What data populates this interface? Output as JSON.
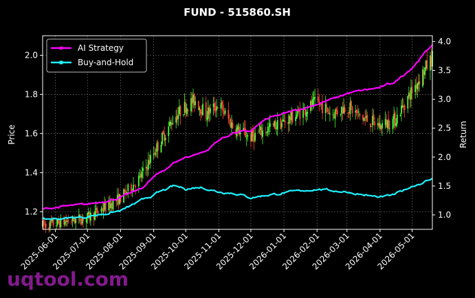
{
  "chart_data": {
    "type": "line",
    "title": "FUND - 515860.SH",
    "ylabel_left": "Price",
    "ylabel_right": "Return",
    "ylim_left": [
      1.11,
      2.1
    ],
    "ylim_right": [
      0.75,
      4.1
    ],
    "yticks_left": [
      "1.2",
      "1.4",
      "1.6",
      "1.8",
      "2.0"
    ],
    "yticks_right": [
      "1.0",
      "1.5",
      "2.0",
      "2.5",
      "3.0",
      "3.5",
      "4.0"
    ],
    "xticks": [
      "2025-06-01",
      "2025-07-01",
      "2025-08-01",
      "2025-09-01",
      "2025-10-01",
      "2025-11-01",
      "2025-12-01",
      "2026-01-01",
      "2026-02-01",
      "2026-03-01",
      "2026-04-01",
      "2026-05-01"
    ],
    "xrange": [
      "2025-05-20",
      "2026-05-20"
    ],
    "grid": true,
    "legend_position": "top-left",
    "colors": {
      "up": "#4cff3a",
      "down": "#ff4a3a",
      "ai": "#ff00ff",
      "bh": "#1ff2ff"
    },
    "price_series": {
      "name": "Price",
      "x": [
        "2025-05-20",
        "2025-06-01",
        "2025-07-01",
        "2025-08-01",
        "2025-08-20",
        "2025-09-01",
        "2025-09-20",
        "2025-10-01",
        "2025-10-10",
        "2025-10-20",
        "2025-11-01",
        "2025-11-15",
        "2025-12-01",
        "2025-12-15",
        "2026-01-01",
        "2026-01-20",
        "2026-02-01",
        "2026-02-15",
        "2026-03-01",
        "2026-03-15",
        "2026-04-01",
        "2026-04-15",
        "2026-05-01",
        "2026-05-20"
      ],
      "values": [
        1.13,
        1.14,
        1.17,
        1.27,
        1.38,
        1.5,
        1.68,
        1.74,
        1.77,
        1.7,
        1.75,
        1.63,
        1.58,
        1.62,
        1.66,
        1.72,
        1.76,
        1.7,
        1.74,
        1.68,
        1.64,
        1.67,
        1.82,
        1.99
      ]
    },
    "series": [
      {
        "name": "AI Strategy",
        "x": [
          "2025-05-20",
          "2025-06-01",
          "2025-07-01",
          "2025-08-01",
          "2025-08-20",
          "2025-09-01",
          "2025-09-20",
          "2025-10-01",
          "2025-10-20",
          "2025-11-01",
          "2025-11-15",
          "2025-12-01",
          "2025-12-15",
          "2026-01-01",
          "2026-01-20",
          "2026-02-01",
          "2026-02-20",
          "2026-03-01",
          "2026-03-15",
          "2026-04-01",
          "2026-04-15",
          "2026-05-01",
          "2026-05-20"
        ],
        "values": [
          1.1,
          1.13,
          1.18,
          1.3,
          1.45,
          1.65,
          1.9,
          2.0,
          2.1,
          2.3,
          2.42,
          2.45,
          2.65,
          2.75,
          2.85,
          2.92,
          3.03,
          3.1,
          3.15,
          3.2,
          3.3,
          3.55,
          3.95
        ]
      },
      {
        "name": "Buy-and-Hold",
        "x": [
          "2025-05-20",
          "2025-06-01",
          "2025-07-01",
          "2025-08-01",
          "2025-09-01",
          "2025-09-20",
          "2025-10-01",
          "2025-10-15",
          "2025-11-01",
          "2025-11-15",
          "2025-12-01",
          "2025-12-15",
          "2026-01-01",
          "2026-01-20",
          "2026-02-01",
          "2026-02-15",
          "2026-03-01",
          "2026-03-15",
          "2026-04-01",
          "2026-04-15",
          "2026-05-01",
          "2026-05-20"
        ],
        "values": [
          0.92,
          0.93,
          0.97,
          1.07,
          1.35,
          1.5,
          1.45,
          1.48,
          1.4,
          1.38,
          1.3,
          1.34,
          1.38,
          1.42,
          1.45,
          1.42,
          1.4,
          1.35,
          1.3,
          1.35,
          1.5,
          1.62
        ]
      }
    ]
  },
  "watermark": "uqtool.com"
}
